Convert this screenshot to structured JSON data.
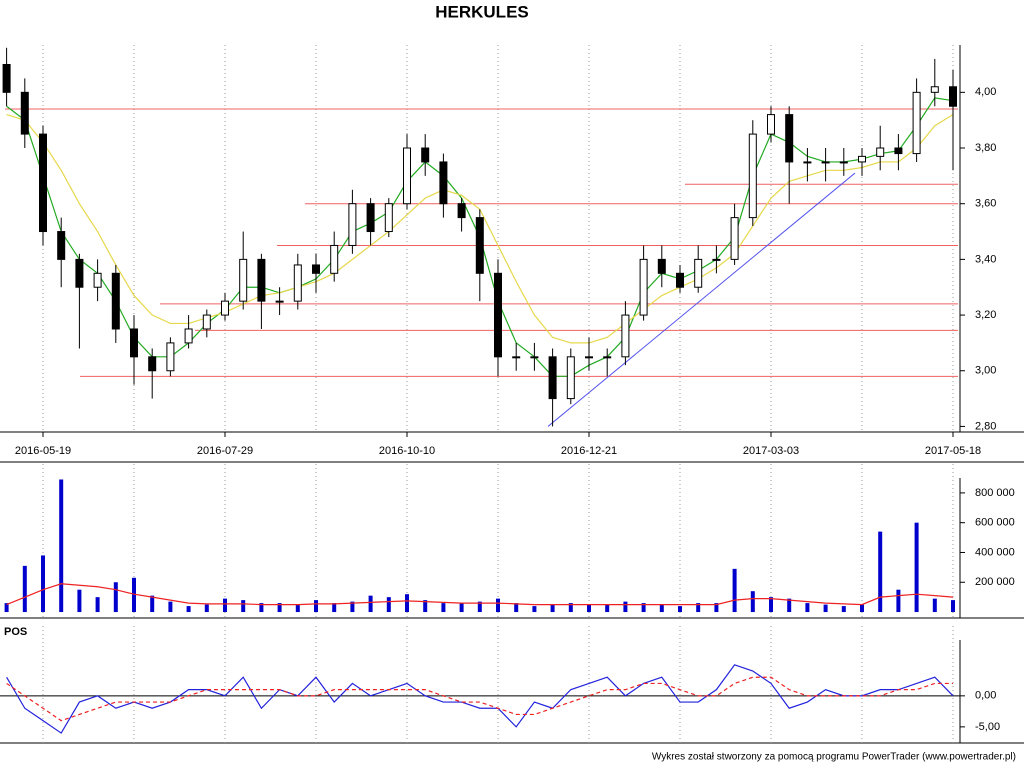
{
  "chart_data": [
    {
      "type": "candlestick",
      "title": "HERKULES",
      "categories": [
        null,
        null,
        "2016-05-19",
        null,
        null,
        null,
        null,
        null,
        null,
        null,
        null,
        null,
        "2016-07-29",
        null,
        null,
        null,
        null,
        null,
        null,
        null,
        null,
        null,
        "2016-10-10",
        null,
        null,
        null,
        null,
        null,
        null,
        null,
        null,
        null,
        "2016-12-21",
        null,
        null,
        null,
        null,
        null,
        null,
        null,
        null,
        null,
        "2017-03-03",
        null,
        null,
        null,
        null,
        null,
        null,
        null,
        null,
        null,
        "2017-05-18"
      ],
      "open": [
        4.1,
        4.0,
        3.85,
        3.5,
        3.4,
        3.3,
        3.35,
        3.15,
        3.05,
        3.0,
        3.1,
        3.15,
        3.2,
        3.25,
        3.4,
        3.25,
        3.25,
        3.38,
        3.35,
        3.45,
        3.6,
        3.5,
        3.6,
        3.8,
        3.75,
        3.6,
        3.55,
        3.35,
        3.05,
        3.05,
        3.05,
        2.9,
        3.05,
        3.05,
        3.05,
        3.2,
        3.4,
        3.35,
        3.3,
        3.4,
        3.4,
        3.55,
        3.85,
        3.92,
        3.75,
        3.75,
        3.75,
        3.75,
        3.77,
        3.8,
        3.78,
        4.0,
        4.02
      ],
      "high": [
        4.16,
        4.05,
        3.88,
        3.55,
        3.42,
        3.4,
        3.38,
        3.2,
        3.08,
        3.12,
        3.2,
        3.22,
        3.28,
        3.5,
        3.42,
        3.3,
        3.42,
        3.42,
        3.5,
        3.65,
        3.62,
        3.62,
        3.85,
        3.85,
        3.78,
        3.62,
        3.58,
        3.4,
        3.1,
        3.1,
        3.08,
        3.08,
        3.12,
        3.08,
        3.25,
        3.45,
        3.45,
        3.38,
        3.45,
        3.45,
        3.6,
        3.9,
        3.95,
        3.95,
        3.8,
        3.8,
        3.8,
        3.8,
        3.88,
        3.85,
        4.05,
        4.12,
        4.08
      ],
      "low": [
        3.95,
        3.8,
        3.45,
        3.3,
        3.08,
        3.25,
        3.1,
        2.95,
        2.9,
        2.98,
        3.08,
        3.12,
        3.18,
        3.22,
        3.15,
        3.2,
        3.22,
        3.28,
        3.32,
        3.42,
        3.45,
        3.48,
        3.58,
        3.7,
        3.55,
        3.5,
        3.25,
        2.98,
        3.0,
        3.0,
        2.8,
        2.88,
        3.0,
        2.98,
        3.02,
        3.18,
        3.3,
        3.28,
        3.28,
        3.35,
        3.38,
        3.52,
        3.82,
        3.6,
        3.68,
        3.68,
        3.7,
        3.7,
        3.72,
        3.72,
        3.75,
        3.95,
        3.72
      ],
      "close": [
        4.0,
        3.85,
        3.5,
        3.4,
        3.3,
        3.35,
        3.15,
        3.05,
        3.0,
        3.1,
        3.15,
        3.2,
        3.25,
        3.4,
        3.25,
        3.25,
        3.38,
        3.35,
        3.45,
        3.6,
        3.5,
        3.6,
        3.8,
        3.75,
        3.6,
        3.55,
        3.35,
        3.05,
        3.05,
        3.05,
        2.9,
        3.05,
        3.05,
        3.05,
        3.2,
        3.4,
        3.35,
        3.3,
        3.4,
        3.4,
        3.55,
        3.85,
        3.92,
        3.75,
        3.75,
        3.75,
        3.75,
        3.77,
        3.8,
        3.78,
        4.0,
        4.02,
        3.95
      ],
      "series": [
        {
          "color": "#22aa22",
          "values": [
            3.95,
            3.9,
            3.7,
            3.5,
            3.4,
            3.35,
            3.25,
            3.12,
            3.05,
            3.05,
            3.1,
            3.17,
            3.22,
            3.3,
            3.3,
            3.28,
            3.3,
            3.33,
            3.4,
            3.5,
            3.53,
            3.57,
            3.68,
            3.75,
            3.7,
            3.62,
            3.48,
            3.25,
            3.1,
            3.05,
            2.98,
            2.98,
            3.02,
            3.05,
            3.12,
            3.28,
            3.35,
            3.33,
            3.36,
            3.4,
            3.48,
            3.7,
            3.85,
            3.82,
            3.77,
            3.75,
            3.75,
            3.76,
            3.78,
            3.79,
            3.88,
            3.98,
            3.97
          ]
        },
        {
          "color": "#e6d84a",
          "values": [
            3.92,
            3.9,
            3.82,
            3.72,
            3.6,
            3.5,
            3.38,
            3.27,
            3.2,
            3.17,
            3.17,
            3.19,
            3.21,
            3.24,
            3.27,
            3.28,
            3.3,
            3.32,
            3.35,
            3.4,
            3.45,
            3.5,
            3.56,
            3.62,
            3.65,
            3.63,
            3.58,
            3.45,
            3.32,
            3.2,
            3.12,
            3.1,
            3.1,
            3.12,
            3.17,
            3.22,
            3.27,
            3.3,
            3.33,
            3.37,
            3.42,
            3.52,
            3.62,
            3.68,
            3.7,
            3.72,
            3.72,
            3.73,
            3.75,
            3.75,
            3.8,
            3.88,
            3.92
          ]
        }
      ],
      "levels": [
        3.94,
        3.67,
        3.6,
        3.45,
        3.24,
        3.145,
        2.98
      ],
      "level_color": "#f06060",
      "trendline": [
        2.8,
        3.71
      ],
      "trendline_color": "#5555ee",
      "ylim": [
        2.78,
        4.17
      ],
      "yticks": [
        {
          "value": 2.8,
          "label": "2,80"
        },
        {
          "value": 3.0,
          "label": "3,00"
        },
        {
          "value": 3.2,
          "label": "3,20"
        },
        {
          "value": 3.4,
          "label": "3,40"
        },
        {
          "value": 3.6,
          "label": "3,60"
        },
        {
          "value": 3.8,
          "label": "3,80"
        },
        {
          "value": 4.0,
          "label": "4,00"
        }
      ]
    },
    {
      "type": "bar",
      "color": "#0000cc",
      "values": [
        60000,
        310000,
        380000,
        890000,
        150000,
        100000,
        200000,
        230000,
        110000,
        70000,
        40000,
        50000,
        90000,
        80000,
        60000,
        60000,
        50000,
        80000,
        60000,
        70000,
        110000,
        100000,
        120000,
        80000,
        60000,
        60000,
        70000,
        90000,
        60000,
        40000,
        50000,
        60000,
        50000,
        50000,
        70000,
        60000,
        50000,
        40000,
        60000,
        60000,
        290000,
        140000,
        100000,
        90000,
        60000,
        50000,
        40000,
        50000,
        540000,
        150000,
        600000,
        90000,
        80000
      ],
      "series": [
        {
          "color": "#ee2222",
          "values": [
            50000,
            100000,
            150000,
            190000,
            180000,
            170000,
            150000,
            120000,
            100000,
            80000,
            60000,
            55000,
            55000,
            55000,
            50000,
            50000,
            50000,
            55000,
            55000,
            60000,
            65000,
            70000,
            75000,
            70000,
            65000,
            60000,
            60000,
            60000,
            55000,
            50000,
            50000,
            50000,
            50000,
            50000,
            50000,
            50000,
            50000,
            50000,
            50000,
            50000,
            80000,
            90000,
            90000,
            80000,
            70000,
            60000,
            55000,
            50000,
            100000,
            110000,
            120000,
            110000,
            100000
          ]
        }
      ],
      "ylim": [
        -40000,
        900000
      ],
      "yticks": [
        {
          "value": 200000,
          "label": "200 000"
        },
        {
          "value": 400000,
          "label": "400 000"
        },
        {
          "value": 600000,
          "label": "600 000"
        },
        {
          "value": 800000,
          "label": "800 000"
        }
      ]
    },
    {
      "type": "line",
      "title": "POS",
      "series": [
        {
          "color": "#2222dd",
          "values": [
            3,
            -2,
            -4,
            -6,
            -1,
            0,
            -2,
            -1,
            -2,
            -1,
            1,
            1,
            0,
            3,
            -2,
            1,
            0,
            3,
            -1,
            2,
            0,
            1,
            2,
            0,
            -1,
            -1,
            -2,
            -2,
            -5,
            -1,
            -2,
            1,
            2,
            3,
            0,
            2,
            3,
            -1,
            -1,
            1,
            5,
            4,
            2,
            -2,
            -1,
            1,
            0,
            0,
            1,
            1,
            2,
            3,
            0
          ]
        },
        {
          "color": "#ee2222",
          "dashed": true,
          "values": [
            2,
            0,
            -2,
            -4,
            -3,
            -2,
            -1,
            -1,
            -1,
            -1,
            0,
            1,
            1,
            1,
            1,
            1,
            0,
            0,
            1,
            1,
            1,
            1,
            1,
            1,
            0,
            -1,
            -1,
            -2,
            -3,
            -3,
            -2,
            -1,
            0,
            1,
            1,
            2,
            2,
            1,
            0,
            0,
            2,
            3,
            3,
            1,
            0,
            0,
            0,
            0,
            0,
            1,
            1,
            2,
            2
          ]
        }
      ],
      "ylim": [
        -7.6,
        9
      ],
      "yticks": [
        {
          "value": 0,
          "label": "0,00"
        },
        {
          "value": -5,
          "label": "-5,00"
        }
      ]
    }
  ],
  "footer": "Wykres został stworzony za pomocą programu PowerTrader (www.powertrader.pl)"
}
